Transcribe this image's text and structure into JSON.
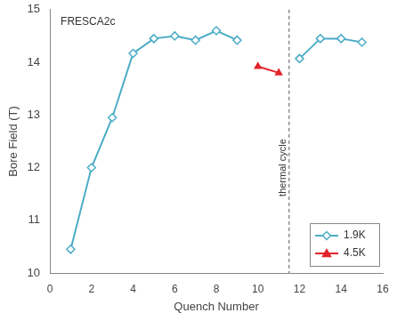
{
  "chart_data": {
    "type": "line",
    "title": "FRESCA2c",
    "x_label": "Quench Number",
    "y_label": "Bore Field (T)",
    "x": [
      1,
      2,
      3,
      4,
      5,
      6,
      7,
      8,
      9,
      10,
      11,
      12,
      13,
      14,
      15
    ],
    "series": [
      {
        "name": "1.9K",
        "color": "#4bacc6",
        "marker": "diamond",
        "line_style": "solid",
        "values": [
          10.45,
          12.0,
          12.95,
          14.17,
          14.45,
          14.5,
          14.42,
          14.6,
          14.42,
          null,
          null,
          14.07,
          14.45,
          14.45,
          14.38
        ]
      },
      {
        "name": "4.5K",
        "color": "#e3242b",
        "marker": "triangle",
        "line_style": "solid",
        "values": [
          null,
          null,
          null,
          null,
          null,
          null,
          null,
          null,
          null,
          13.92,
          13.8,
          null,
          null,
          null,
          null
        ]
      }
    ],
    "annotations": [
      {
        "text": "thermal cycle",
        "x": 11.5
      }
    ],
    "xlim": [
      0,
      16
    ],
    "xticks": [
      0,
      2,
      4,
      6,
      8,
      10,
      12,
      14,
      16
    ],
    "ylim": [
      10,
      15
    ],
    "yticks": [
      10,
      11,
      12,
      13,
      14,
      15
    ],
    "grid": false,
    "legend": "bottom-right"
  }
}
